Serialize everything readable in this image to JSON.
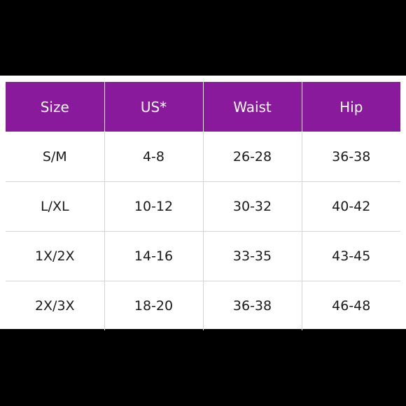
{
  "colors": {
    "header_bg": "#8a1a9c",
    "header_text": "#ffffff",
    "body_bg": "#ffffff",
    "frame_bg": "#000000",
    "grid_line": "#d6d6d6"
  },
  "table": {
    "headers": [
      "Size",
      "US*",
      "Waist",
      "Hip"
    ],
    "rows": [
      [
        "S/M",
        "4-8",
        "26-28",
        "36-38"
      ],
      [
        "L/XL",
        "10-12",
        "30-32",
        "40-42"
      ],
      [
        "1X/2X",
        "14-16",
        "33-35",
        "43-45"
      ],
      [
        "2X/3X",
        "18-20",
        "36-38",
        "46-48"
      ]
    ]
  }
}
